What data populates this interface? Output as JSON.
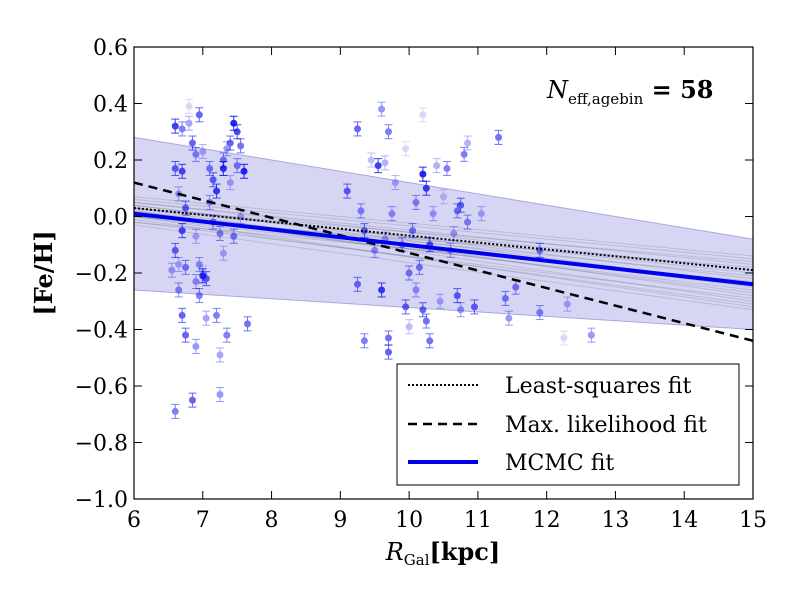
{
  "chart_data": {
    "type": "scatter",
    "xlabel_symbol": "R",
    "xlabel_sub": "Gal",
    "xlabel_unit": "[kpc]",
    "ylabel": "[Fe/H]",
    "xlim": [
      6,
      15
    ],
    "ylim": [
      -1.0,
      0.6
    ],
    "xticks": [
      6,
      7,
      8,
      9,
      10,
      11,
      12,
      13,
      14,
      15
    ],
    "yticks": [
      0.6,
      0.4,
      0.2,
      0.0,
      -0.2,
      -0.4,
      -0.6,
      -0.8,
      -1.0
    ],
    "xtick_labels": [
      "6",
      "7",
      "8",
      "9",
      "10",
      "11",
      "12",
      "13",
      "14",
      "15"
    ],
    "ytick_labels": [
      "0.6",
      "0.4",
      "0.2",
      "0.0",
      "−0.2",
      "−0.4",
      "−0.6",
      "−0.8",
      "−1.0"
    ],
    "annotation_symbol": "N",
    "annotation_sub": "eff,agebin",
    "annotation_value": " = 58",
    "band": {
      "x": [
        6,
        15
      ],
      "upper": [
        0.28,
        -0.08
      ],
      "lower": [
        -0.26,
        -0.4
      ],
      "color": "#c8c8f0"
    },
    "fits": [
      {
        "name": "Least-squares fit",
        "style": "dotted",
        "color": "#000000",
        "x": [
          6,
          15
        ],
        "y": [
          0.03,
          -0.19
        ]
      },
      {
        "name": "Max. likelihood fit",
        "style": "dashed",
        "color": "#000000",
        "x": [
          6,
          15
        ],
        "y": [
          0.12,
          -0.44
        ]
      },
      {
        "name": "MCMC fit",
        "style": "solid",
        "color": "#0000ee",
        "x": [
          6,
          15
        ],
        "y": [
          0.01,
          -0.24
        ]
      }
    ],
    "mcmc_samples": [
      [
        0.03,
        -0.2
      ],
      [
        0.0,
        -0.26
      ],
      [
        0.05,
        -0.17
      ],
      [
        -0.02,
        -0.29
      ],
      [
        0.04,
        -0.22
      ],
      [
        0.02,
        -0.25
      ],
      [
        0.06,
        -0.15
      ],
      [
        -0.01,
        -0.31
      ],
      [
        0.01,
        -0.21
      ],
      [
        0.03,
        -0.28
      ],
      [
        0.05,
        -0.19
      ],
      [
        -0.03,
        -0.33
      ],
      [
        0.0,
        -0.18
      ],
      [
        0.02,
        -0.3
      ],
      [
        0.04,
        -0.24
      ],
      [
        0.07,
        -0.14
      ],
      [
        0.01,
        -0.27
      ],
      [
        -0.02,
        -0.23
      ],
      [
        0.03,
        -0.16
      ],
      [
        0.0,
        -0.32
      ]
    ],
    "points": [
      {
        "x": 6.6,
        "y": 0.32,
        "a": 0.75
      },
      {
        "x": 6.7,
        "y": 0.31,
        "a": 0.5
      },
      {
        "x": 6.8,
        "y": 0.39,
        "a": 0.15
      },
      {
        "x": 6.8,
        "y": 0.33,
        "a": 0.35
      },
      {
        "x": 6.95,
        "y": 0.36,
        "a": 0.6
      },
      {
        "x": 6.85,
        "y": 0.26,
        "a": 0.6
      },
      {
        "x": 6.6,
        "y": 0.17,
        "a": 0.6
      },
      {
        "x": 6.7,
        "y": 0.16,
        "a": 0.7
      },
      {
        "x": 6.9,
        "y": 0.22,
        "a": 0.45
      },
      {
        "x": 7.0,
        "y": 0.23,
        "a": 0.3
      },
      {
        "x": 6.65,
        "y": 0.08,
        "a": 0.35
      },
      {
        "x": 6.75,
        "y": 0.03,
        "a": 0.6
      },
      {
        "x": 6.6,
        "y": -0.12,
        "a": 0.6
      },
      {
        "x": 6.7,
        "y": -0.05,
        "a": 0.7
      },
      {
        "x": 6.55,
        "y": -0.19,
        "a": 0.35
      },
      {
        "x": 6.65,
        "y": -0.17,
        "a": 0.3
      },
      {
        "x": 6.75,
        "y": -0.18,
        "a": 0.5
      },
      {
        "x": 6.9,
        "y": -0.07,
        "a": 0.3
      },
      {
        "x": 6.95,
        "y": -0.17,
        "a": 0.4
      },
      {
        "x": 7.0,
        "y": -0.21,
        "a": 0.8
      },
      {
        "x": 7.05,
        "y": -0.22,
        "a": 0.6
      },
      {
        "x": 6.9,
        "y": -0.23,
        "a": 0.4
      },
      {
        "x": 6.95,
        "y": -0.28,
        "a": 0.5
      },
      {
        "x": 6.65,
        "y": -0.26,
        "a": 0.45
      },
      {
        "x": 6.7,
        "y": -0.35,
        "a": 0.6
      },
      {
        "x": 6.75,
        "y": -0.42,
        "a": 0.6
      },
      {
        "x": 6.9,
        "y": -0.46,
        "a": 0.4
      },
      {
        "x": 7.05,
        "y": -0.36,
        "a": 0.35
      },
      {
        "x": 7.2,
        "y": -0.35,
        "a": 0.5
      },
      {
        "x": 7.35,
        "y": -0.42,
        "a": 0.5
      },
      {
        "x": 7.25,
        "y": -0.49,
        "a": 0.35
      },
      {
        "x": 6.6,
        "y": -0.69,
        "a": 0.5
      },
      {
        "x": 6.85,
        "y": -0.65,
        "a": 0.6
      },
      {
        "x": 7.25,
        "y": -0.63,
        "a": 0.4
      },
      {
        "x": 7.1,
        "y": 0.17,
        "a": 0.5
      },
      {
        "x": 7.15,
        "y": 0.13,
        "a": 0.6
      },
      {
        "x": 7.2,
        "y": 0.09,
        "a": 0.75
      },
      {
        "x": 7.1,
        "y": 0.05,
        "a": 0.4
      },
      {
        "x": 7.15,
        "y": -0.02,
        "a": 0.5
      },
      {
        "x": 7.25,
        "y": -0.06,
        "a": 0.45
      },
      {
        "x": 7.3,
        "y": 0.2,
        "a": 0.5
      },
      {
        "x": 7.35,
        "y": 0.24,
        "a": 0.4
      },
      {
        "x": 7.3,
        "y": 0.17,
        "a": 0.8
      },
      {
        "x": 7.4,
        "y": 0.26,
        "a": 0.6
      },
      {
        "x": 7.45,
        "y": 0.33,
        "a": 0.85
      },
      {
        "x": 7.5,
        "y": 0.3,
        "a": 0.7
      },
      {
        "x": 7.55,
        "y": 0.25,
        "a": 0.55
      },
      {
        "x": 7.6,
        "y": 0.16,
        "a": 0.85
      },
      {
        "x": 7.5,
        "y": 0.18,
        "a": 0.5
      },
      {
        "x": 7.4,
        "y": 0.12,
        "a": 0.3
      },
      {
        "x": 7.45,
        "y": -0.07,
        "a": 0.5
      },
      {
        "x": 7.55,
        "y": 0.0,
        "a": 0.3
      },
      {
        "x": 7.65,
        "y": -0.38,
        "a": 0.55
      },
      {
        "x": 7.3,
        "y": -0.13,
        "a": 0.3
      },
      {
        "x": 7.0,
        "y": -0.2,
        "a": 0.2
      },
      {
        "x": 9.1,
        "y": 0.09,
        "a": 0.6
      },
      {
        "x": 9.25,
        "y": 0.31,
        "a": 0.6
      },
      {
        "x": 9.3,
        "y": 0.02,
        "a": 0.45
      },
      {
        "x": 9.35,
        "y": -0.05,
        "a": 0.6
      },
      {
        "x": 9.25,
        "y": -0.24,
        "a": 0.55
      },
      {
        "x": 9.35,
        "y": -0.44,
        "a": 0.5
      },
      {
        "x": 9.55,
        "y": 0.18,
        "a": 0.75
      },
      {
        "x": 9.6,
        "y": 0.38,
        "a": 0.4
      },
      {
        "x": 9.65,
        "y": 0.19,
        "a": 0.3
      },
      {
        "x": 9.7,
        "y": 0.3,
        "a": 0.5
      },
      {
        "x": 9.6,
        "y": -0.26,
        "a": 0.75
      },
      {
        "x": 9.7,
        "y": -0.43,
        "a": 0.55
      },
      {
        "x": 9.7,
        "y": -0.48,
        "a": 0.6
      },
      {
        "x": 9.75,
        "y": 0.01,
        "a": 0.4
      },
      {
        "x": 9.8,
        "y": 0.12,
        "a": 0.3
      },
      {
        "x": 9.5,
        "y": -0.12,
        "a": 0.4
      },
      {
        "x": 9.65,
        "y": -0.08,
        "a": 0.35
      },
      {
        "x": 9.9,
        "y": -0.1,
        "a": 0.5
      },
      {
        "x": 9.95,
        "y": -0.32,
        "a": 0.6
      },
      {
        "x": 10.0,
        "y": -0.2,
        "a": 0.5
      },
      {
        "x": 10.05,
        "y": -0.05,
        "a": 0.5
      },
      {
        "x": 10.1,
        "y": 0.05,
        "a": 0.45
      },
      {
        "x": 10.15,
        "y": -0.18,
        "a": 0.5
      },
      {
        "x": 10.1,
        "y": -0.26,
        "a": 0.4
      },
      {
        "x": 10.2,
        "y": 0.15,
        "a": 0.85
      },
      {
        "x": 10.25,
        "y": 0.1,
        "a": 0.75
      },
      {
        "x": 10.2,
        "y": -0.33,
        "a": 0.6
      },
      {
        "x": 10.25,
        "y": -0.37,
        "a": 0.55
      },
      {
        "x": 10.3,
        "y": -0.44,
        "a": 0.55
      },
      {
        "x": 10.3,
        "y": -0.1,
        "a": 0.7
      },
      {
        "x": 10.35,
        "y": 0.01,
        "a": 0.35
      },
      {
        "x": 10.4,
        "y": 0.18,
        "a": 0.3
      },
      {
        "x": 10.45,
        "y": -0.3,
        "a": 0.3
      },
      {
        "x": 10.55,
        "y": 0.17,
        "a": 0.5
      },
      {
        "x": 10.6,
        "y": -0.12,
        "a": 0.4
      },
      {
        "x": 10.65,
        "y": -0.06,
        "a": 0.35
      },
      {
        "x": 10.7,
        "y": 0.02,
        "a": 0.5
      },
      {
        "x": 10.7,
        "y": -0.28,
        "a": 0.6
      },
      {
        "x": 10.75,
        "y": -0.33,
        "a": 0.4
      },
      {
        "x": 10.8,
        "y": 0.22,
        "a": 0.5
      },
      {
        "x": 10.85,
        "y": 0.26,
        "a": 0.3
      },
      {
        "x": 10.75,
        "y": 0.04,
        "a": 0.6
      },
      {
        "x": 10.85,
        "y": -0.02,
        "a": 0.45
      },
      {
        "x": 10.95,
        "y": -0.32,
        "a": 0.6
      },
      {
        "x": 11.05,
        "y": 0.01,
        "a": 0.3
      },
      {
        "x": 11.3,
        "y": 0.28,
        "a": 0.55
      },
      {
        "x": 11.4,
        "y": -0.29,
        "a": 0.5
      },
      {
        "x": 11.45,
        "y": -0.36,
        "a": 0.4
      },
      {
        "x": 11.55,
        "y": -0.25,
        "a": 0.5
      },
      {
        "x": 11.9,
        "y": -0.12,
        "a": 0.55
      },
      {
        "x": 11.9,
        "y": -0.34,
        "a": 0.45
      },
      {
        "x": 12.3,
        "y": -0.31,
        "a": 0.3
      },
      {
        "x": 12.25,
        "y": -0.43,
        "a": 0.15
      },
      {
        "x": 12.65,
        "y": -0.42,
        "a": 0.4
      },
      {
        "x": 10.2,
        "y": 0.36,
        "a": 0.15
      },
      {
        "x": 9.95,
        "y": 0.24,
        "a": 0.15
      },
      {
        "x": 10.5,
        "y": 0.07,
        "a": 0.2
      },
      {
        "x": 9.45,
        "y": 0.2,
        "a": 0.25
      },
      {
        "x": 10.0,
        "y": -0.39,
        "a": 0.25
      }
    ],
    "legend": [
      {
        "label": "Least-squares fit",
        "style": "dotted"
      },
      {
        "label": "Max. likelihood fit",
        "style": "dashed"
      },
      {
        "label": "MCMC fit",
        "style": "solid"
      }
    ]
  }
}
